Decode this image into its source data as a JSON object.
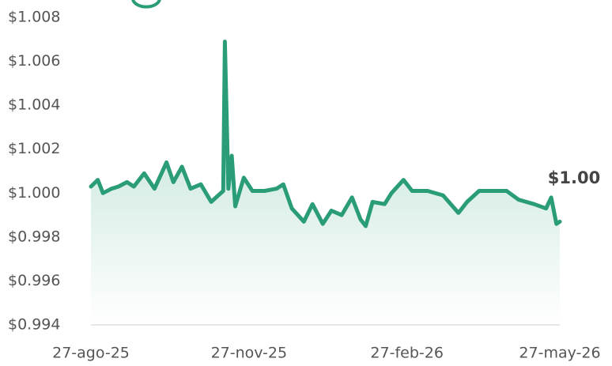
{
  "chart_data": {
    "type": "line",
    "color": "#2a9d78",
    "x": [
      "2025-08-27",
      "2025-08-31",
      "2025-09-03",
      "2025-09-08",
      "2025-09-12",
      "2025-09-17",
      "2025-09-21",
      "2025-09-27",
      "2025-10-03",
      "2025-10-10",
      "2025-10-14",
      "2025-10-19",
      "2025-10-24",
      "2025-10-30",
      "2025-11-05",
      "2025-11-12",
      "2025-11-13",
      "2025-11-15",
      "2025-11-17",
      "2025-11-19",
      "2025-11-24",
      "2025-11-29",
      "2025-12-06",
      "2025-12-13",
      "2025-12-17",
      "2025-12-22",
      "2025-12-29",
      "2026-01-03",
      "2026-01-09",
      "2026-01-14",
      "2026-01-20",
      "2026-01-26",
      "2026-01-31",
      "2026-02-03",
      "2026-02-07",
      "2026-02-14",
      "2026-02-18",
      "2026-02-25",
      "2026-03-02",
      "2026-03-11",
      "2026-03-20",
      "2026-03-29",
      "2026-04-03",
      "2026-04-10",
      "2026-04-19",
      "2026-04-26",
      "2026-05-03",
      "2026-05-12",
      "2026-05-19",
      "2026-05-22",
      "2026-05-25",
      "2026-05-27"
    ],
    "values": [
      1.0003,
      1.0006,
      1.0,
      1.0002,
      1.0003,
      1.0005,
      1.0003,
      1.0009,
      1.0002,
      1.0014,
      1.0005,
      1.0012,
      1.0002,
      1.0004,
      0.9996,
      1.0001,
      1.0069,
      1.0002,
      1.0017,
      0.9994,
      1.0007,
      1.0001,
      1.0001,
      1.0002,
      1.0004,
      0.9993,
      0.9987,
      0.9995,
      0.9986,
      0.9992,
      0.999,
      0.9998,
      0.9988,
      0.9985,
      0.9996,
      0.9995,
      1.0,
      1.0006,
      1.0001,
      1.0001,
      0.9999,
      0.9991,
      0.9996,
      1.0001,
      1.0001,
      1.0001,
      0.9997,
      0.9995,
      0.9993,
      0.9998,
      0.9986,
      0.9987
    ],
    "end_label": "$1.00",
    "xlim": [
      "2025-08-27",
      "2026-05-27"
    ],
    "xticks": [
      {
        "value": "2025-08-27",
        "label": "27-ago-25"
      },
      {
        "value": "2025-11-27",
        "label": "27-nov-25"
      },
      {
        "value": "2026-02-27",
        "label": "27-feb-26"
      },
      {
        "value": "2026-05-27",
        "label": "27-may-26"
      }
    ],
    "ylim": [
      0.994,
      1.008
    ],
    "yticks": [
      {
        "value": 0.994,
        "label": "$0.994"
      },
      {
        "value": 0.996,
        "label": "$0.996"
      },
      {
        "value": 0.998,
        "label": "$0.998"
      },
      {
        "value": 1.0,
        "label": "$1.000"
      },
      {
        "value": 1.002,
        "label": "$1.002"
      },
      {
        "value": 1.004,
        "label": "$1.004"
      },
      {
        "value": 1.006,
        "label": "$1.006"
      },
      {
        "value": 1.008,
        "label": "$1.008"
      }
    ],
    "grid": false
  }
}
